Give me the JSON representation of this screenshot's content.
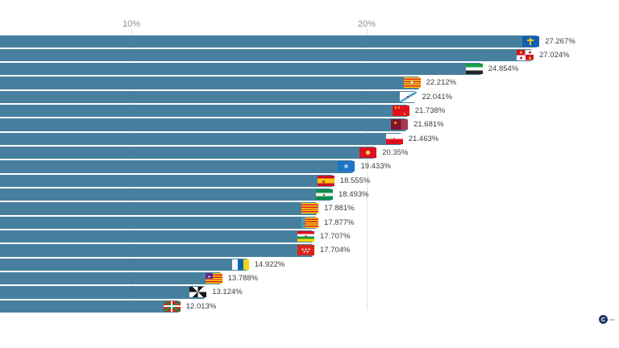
{
  "chart_data": {
    "type": "bar",
    "orientation": "horizontal",
    "title": "",
    "xlabel": "",
    "ylabel": "",
    "grid": true,
    "x_axis": {
      "ticks": [
        {
          "label": "10%",
          "value": 10
        },
        {
          "label": "20%",
          "value": 20
        }
      ],
      "visible_range": [
        4.42,
        30.72
      ]
    },
    "bar_color": "#47809f",
    "series": [
      {
        "region": "Asturias",
        "flag": "asturias",
        "value": 27.267,
        "label": "27.267%"
      },
      {
        "region": "Castilla y Leon",
        "flag": "castilla-leon",
        "value": 27.024,
        "label": "27.024%"
      },
      {
        "region": "Extremadura",
        "flag": "extremadura",
        "value": 24.854,
        "label": "24.854%"
      },
      {
        "region": "Aragon",
        "flag": "aragon",
        "value": 22.212,
        "label": "22.212%"
      },
      {
        "region": "Galicia",
        "flag": "galicia",
        "value": 22.041,
        "label": "22.041%"
      },
      {
        "region": "Murcia",
        "flag": "murcia",
        "value": 21.738,
        "label": "21.738%"
      },
      {
        "region": "Castilla-La Mancha",
        "flag": "castilla-la-mancha",
        "value": 21.681,
        "label": "21.681%"
      },
      {
        "region": "Cantabria",
        "flag": "cantabria",
        "value": 21.463,
        "label": "21.463%"
      },
      {
        "region": "Navarra",
        "flag": "navarra",
        "value": 20.35,
        "label": "20.35%"
      },
      {
        "region": "Melilla",
        "flag": "melilla",
        "value": 19.433,
        "label": "19.433%"
      },
      {
        "region": "Espana",
        "flag": "espana",
        "value": 18.555,
        "label": "18.555%"
      },
      {
        "region": "Andalucia",
        "flag": "andalucia",
        "value": 18.493,
        "label": "18.493%"
      },
      {
        "region": "Cataluna",
        "flag": "cataluna",
        "value": 17.881,
        "label": "17.881%"
      },
      {
        "region": "Comunidad Valenciana",
        "flag": "valencia",
        "value": 17.877,
        "label": "17.877%"
      },
      {
        "region": "La Rioja",
        "flag": "la-rioja",
        "value": 17.707,
        "label": "17.707%"
      },
      {
        "region": "Madrid",
        "flag": "madrid",
        "value": 17.704,
        "label": "17.704%"
      },
      {
        "region": "Canarias",
        "flag": "canarias",
        "value": 14.922,
        "label": "14.922%"
      },
      {
        "region": "Islas Baleares",
        "flag": "baleares",
        "value": 13.788,
        "label": "13.788%"
      },
      {
        "region": "Ceuta",
        "flag": "ceuta",
        "value": 13.124,
        "label": "13.124%"
      },
      {
        "region": "Pais Vasco",
        "flag": "pais-vasco",
        "value": 12.013,
        "label": "12.013%"
      }
    ]
  },
  "watermark": {
    "text": "C"
  }
}
